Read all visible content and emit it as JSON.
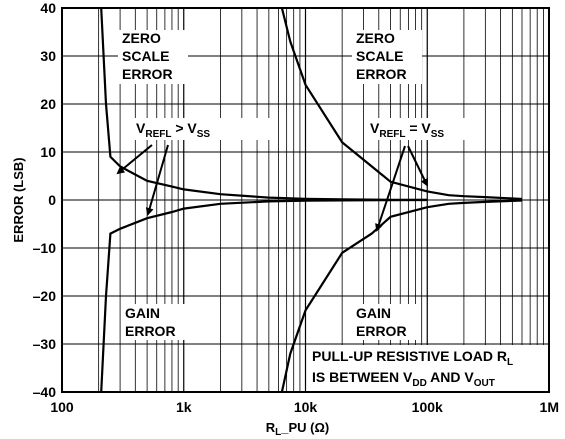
{
  "chart_data": {
    "type": "line",
    "title": "",
    "xlabel": "R_L_PU (Ω)",
    "xlabel_main": "R",
    "xlabel_sub": "L",
    "xlabel_rest": "_PU (Ω)",
    "ylabel": "ERROR (LSB)",
    "xscale": "log",
    "xlim": [
      100,
      1000000
    ],
    "ylim": [
      -40,
      40
    ],
    "grid": true,
    "x_ticks": [
      {
        "value": 100,
        "label": "100"
      },
      {
        "value": 1000,
        "label": "1k"
      },
      {
        "value": 10000,
        "label": "10k"
      },
      {
        "value": 100000,
        "label": "100k"
      },
      {
        "value": 1000000,
        "label": "1M"
      }
    ],
    "y_ticks": [
      {
        "value": 40,
        "label": "40"
      },
      {
        "value": 30,
        "label": "30"
      },
      {
        "value": 20,
        "label": "20"
      },
      {
        "value": 10,
        "label": "10"
      },
      {
        "value": 0,
        "label": "0"
      },
      {
        "value": -10,
        "label": "–10"
      },
      {
        "value": -20,
        "label": "–20"
      },
      {
        "value": -30,
        "label": "–30"
      },
      {
        "value": -40,
        "label": "–40"
      }
    ],
    "series": [
      {
        "x": [
          210,
          230,
          250,
          300,
          500,
          800,
          1000,
          2000,
          5000,
          10000,
          20000,
          50000,
          100000
        ],
        "y": [
          40,
          20,
          9,
          7,
          4,
          2.8,
          2.2,
          1.2,
          0.5,
          0.25,
          0.12,
          0.05,
          0.02
        ]
      },
      {
        "x": [
          210,
          230,
          250,
          300,
          500,
          800,
          1000,
          2000,
          5000,
          10000,
          20000,
          50000,
          100000
        ],
        "y": [
          -40,
          -20,
          -7,
          -6,
          -3.8,
          -2.5,
          -1.8,
          -0.8,
          -0.3,
          -0.15,
          -0.08,
          -0.03,
          -0.01
        ]
      },
      {
        "x": [
          6400,
          7500,
          10000,
          20000,
          35000,
          50000,
          100000,
          150000,
          200000,
          300000,
          600000
        ],
        "y": [
          40,
          33,
          24,
          12,
          7,
          3.8,
          1.8,
          1,
          0.8,
          0.6,
          0.2
        ]
      },
      {
        "x": [
          6400,
          7500,
          10000,
          20000,
          35000,
          50000,
          100000,
          150000,
          200000,
          300000,
          600000
        ],
        "y": [
          -40,
          -32,
          -23,
          -11,
          -7,
          -3.5,
          -1.5,
          -0.8,
          -0.6,
          -0.4,
          -0.1
        ]
      }
    ],
    "annotations": {
      "zero_scale_left": [
        "ZERO",
        "SCALE",
        "ERROR"
      ],
      "zero_scale_right": [
        "ZERO",
        "SCALE",
        "ERROR"
      ],
      "gain_left": [
        "GAIN",
        "ERROR"
      ],
      "gain_right": [
        "GAIN",
        "ERROR"
      ],
      "vrefl_gt": {
        "v1": "V",
        "s1": "REFL",
        "op": " > ",
        "v2": "V",
        "s2": "SS"
      },
      "vrefl_eq": {
        "v1": "V",
        "s1": "REFL",
        "op": " = ",
        "v2": "V",
        "s2": "SS"
      },
      "pullup_line1": {
        "text": "PULL-UP RESISTIVE LOAD R",
        "sub": "L"
      },
      "pullup_line2": {
        "a": "IS BETWEEN V",
        "s1": "DD",
        "b": " AND V",
        "s2": "OUT"
      }
    }
  }
}
